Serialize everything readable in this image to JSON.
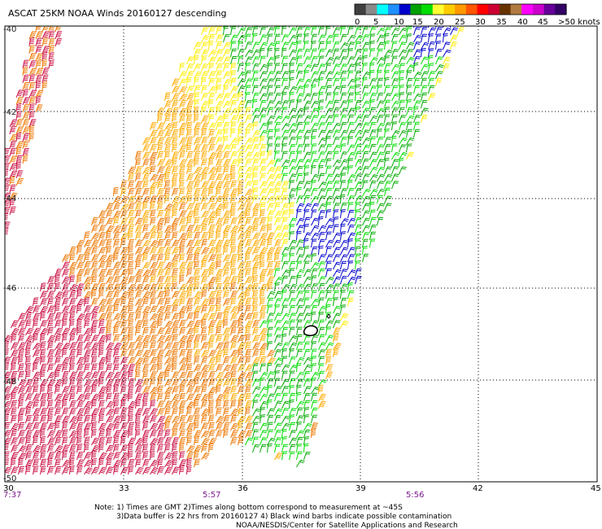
{
  "title": "ASCAT 25KM NOAA Winds 20160127 descending",
  "colorbar": {
    "labels": [
      "0",
      "5",
      "10",
      "15",
      "20",
      "25",
      "30",
      "35",
      "40",
      "45",
      ">50 knots"
    ],
    "colors": [
      "#404040",
      "#8a8a8a",
      "#00ffff",
      "#1e90ff",
      "#0000cc",
      "#00a000",
      "#00dd00",
      "#ffff33",
      "#ffcc00",
      "#ff9900",
      "#ff5500",
      "#ff0000",
      "#cc0033",
      "#663300",
      "#b07a40",
      "#ff00ff",
      "#cc00cc",
      "#660099",
      "#330066"
    ]
  },
  "axes": {
    "x_ticks": [
      "30",
      "33",
      "36",
      "39",
      "42",
      "45"
    ],
    "y_ticks": [
      "-40",
      "-42",
      "-44",
      "-46",
      "-48",
      "-50"
    ]
  },
  "times": [
    "7:37",
    "5:57",
    "5:56"
  ],
  "notes": {
    "line1": "Note: 1) Times are GMT 2)Times along bottom correspond to measurement at ~45S",
    "line2": "3)Data buffer is 22 hrs from 20160127 4) Black wind barbs indicate possible contamination",
    "line3": "NOAA/NESDIS/Center for Satellite Applications and Research"
  },
  "wind_colors": {
    "crimson": "#cc1144",
    "orange": "#ee7700",
    "amber": "#ffaa00",
    "yellow": "#ffee00",
    "green": "#00aa00",
    "lime": "#00dd00",
    "blue": "#0000cc",
    "black": "#000000"
  }
}
